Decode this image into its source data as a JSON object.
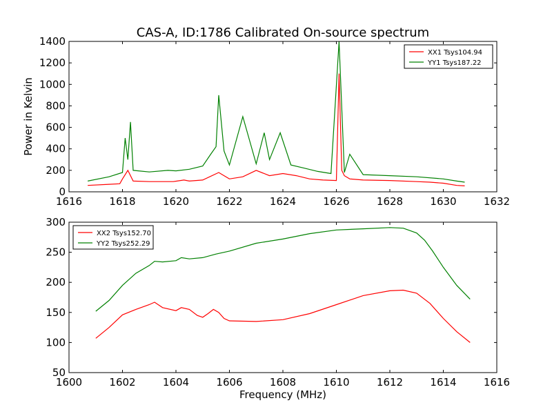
{
  "chart_data": [
    {
      "type": "line",
      "title": "CAS-A, ID:1786 Calibrated On-source spectrum",
      "xlabel": "",
      "ylabel": "Power in Kelvin",
      "xlim": [
        1616,
        1632
      ],
      "ylim": [
        0,
        1400
      ],
      "xticks": [
        1616,
        1618,
        1620,
        1622,
        1624,
        1626,
        1628,
        1630,
        1632
      ],
      "yticks": [
        0,
        200,
        400,
        600,
        800,
        1000,
        1200,
        1400
      ],
      "legend_position": "top-right",
      "series": [
        {
          "name": "XX1 Tsys104.94",
          "color": "#ff0000",
          "x": [
            1616.7,
            1617.5,
            1617.9,
            1618.0,
            1618.2,
            1618.4,
            1619.0,
            1619.9,
            1620.3,
            1620.5,
            1621.0,
            1621.6,
            1622.0,
            1622.5,
            1623.0,
            1623.5,
            1624.0,
            1624.5,
            1625.0,
            1625.5,
            1626.0,
            1626.1,
            1626.2,
            1626.3,
            1626.5,
            1627.0,
            1628.0,
            1629.0,
            1629.5,
            1630.0,
            1630.5,
            1630.8
          ],
          "y": [
            60,
            70,
            75,
            120,
            200,
            100,
            95,
            95,
            110,
            100,
            110,
            180,
            120,
            140,
            200,
            150,
            170,
            150,
            120,
            110,
            105,
            1100,
            200,
            150,
            120,
            110,
            105,
            95,
            90,
            80,
            60,
            55
          ]
        },
        {
          "name": "YY1 Tsys187.22",
          "color": "#008000",
          "x": [
            1616.7,
            1617.5,
            1618.0,
            1618.1,
            1618.2,
            1618.3,
            1618.4,
            1619.0,
            1619.7,
            1620.0,
            1620.5,
            1621.0,
            1621.3,
            1621.5,
            1621.6,
            1621.8,
            1622.0,
            1622.5,
            1623.0,
            1623.3,
            1623.5,
            1623.9,
            1624.3,
            1624.8,
            1625.3,
            1625.8,
            1626.1,
            1626.3,
            1626.5,
            1627.0,
            1628.0,
            1629.0,
            1630.0,
            1630.5,
            1630.8
          ],
          "y": [
            100,
            140,
            180,
            500,
            300,
            650,
            200,
            185,
            200,
            195,
            210,
            240,
            350,
            420,
            900,
            380,
            250,
            700,
            260,
            550,
            300,
            550,
            250,
            220,
            190,
            170,
            1400,
            180,
            350,
            160,
            150,
            140,
            120,
            100,
            90
          ]
        }
      ]
    },
    {
      "type": "line",
      "title": "",
      "xlabel": "Frequency (MHz)",
      "ylabel": "",
      "xlim": [
        1600,
        1616
      ],
      "ylim": [
        50,
        300
      ],
      "xticks": [
        1600,
        1602,
        1604,
        1606,
        1608,
        1610,
        1612,
        1614,
        1616
      ],
      "yticks": [
        50,
        100,
        150,
        200,
        250,
        300
      ],
      "legend_position": "top-left",
      "series": [
        {
          "name": "XX2 Tsys152.70",
          "color": "#ff0000",
          "x": [
            1601.0,
            1601.5,
            1602.0,
            1602.5,
            1603.0,
            1603.2,
            1603.5,
            1604.0,
            1604.2,
            1604.5,
            1604.8,
            1605.0,
            1605.2,
            1605.4,
            1605.6,
            1605.8,
            1606.0,
            1607.0,
            1608.0,
            1609.0,
            1610.0,
            1611.0,
            1612.0,
            1612.5,
            1613.0,
            1613.5,
            1614.0,
            1614.5,
            1615.0
          ],
          "y": [
            107,
            125,
            146,
            155,
            163,
            167,
            158,
            153,
            158,
            155,
            145,
            142,
            148,
            155,
            150,
            140,
            136,
            135,
            138,
            148,
            163,
            178,
            186,
            187,
            182,
            165,
            140,
            118,
            100
          ]
        },
        {
          "name": "YY2 Tsys252.29",
          "color": "#008000",
          "x": [
            1601.0,
            1601.5,
            1602.0,
            1602.5,
            1603.0,
            1603.2,
            1603.5,
            1604.0,
            1604.2,
            1604.5,
            1605.0,
            1605.5,
            1606.0,
            1607.0,
            1608.0,
            1609.0,
            1610.0,
            1611.0,
            1612.0,
            1612.5,
            1613.0,
            1613.3,
            1613.6,
            1614.0,
            1614.5,
            1615.0
          ],
          "y": [
            152,
            170,
            195,
            215,
            228,
            235,
            234,
            236,
            241,
            239,
            241,
            247,
            252,
            265,
            272,
            281,
            287,
            289,
            291,
            290,
            282,
            270,
            252,
            225,
            195,
            172
          ]
        }
      ]
    }
  ]
}
